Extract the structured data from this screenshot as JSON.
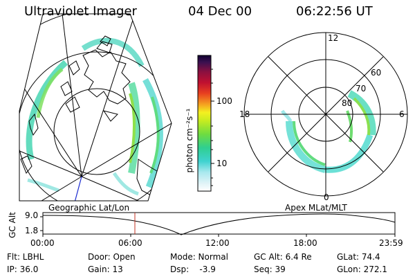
{
  "header": {
    "title": "Ultraviolet Imager",
    "date": "04 Dec 00",
    "time": "06:22:56 UT"
  },
  "colorbar": {
    "unit_label": "photon cm⁻²s⁻¹",
    "ticks": [
      "100",
      "10"
    ]
  },
  "polar_plot": {
    "mlt_labels": {
      "top": "12",
      "left": "18",
      "right": "6",
      "bottom": "0"
    },
    "lat_labels": [
      "60",
      "70",
      "80"
    ]
  },
  "timeline": {
    "left_caption": "Geographic Lat/Lon",
    "right_caption": "Apex  MLat/MLT",
    "axis_label": "GC Alt",
    "y_ticks": [
      "9.0",
      "1.8"
    ],
    "x_ticks": [
      "00:00",
      "06:00",
      "12:00",
      "18:00",
      "23:59"
    ],
    "marker_color": "#c03020"
  },
  "info": {
    "row1": {
      "filter": "Flt: LBHL",
      "door": "Door: Open",
      "mode": "Mode: Normal",
      "gc_alt": "GC Alt: 6.4 Re",
      "glat": "GLat:  74.4"
    },
    "row2": {
      "ip": "IP: 36.0",
      "gain": "Gain: 13",
      "dsp": "Dsp:    -3.9",
      "seq": "Seq: 39",
      "glon": "GLon: 272.1"
    }
  }
}
